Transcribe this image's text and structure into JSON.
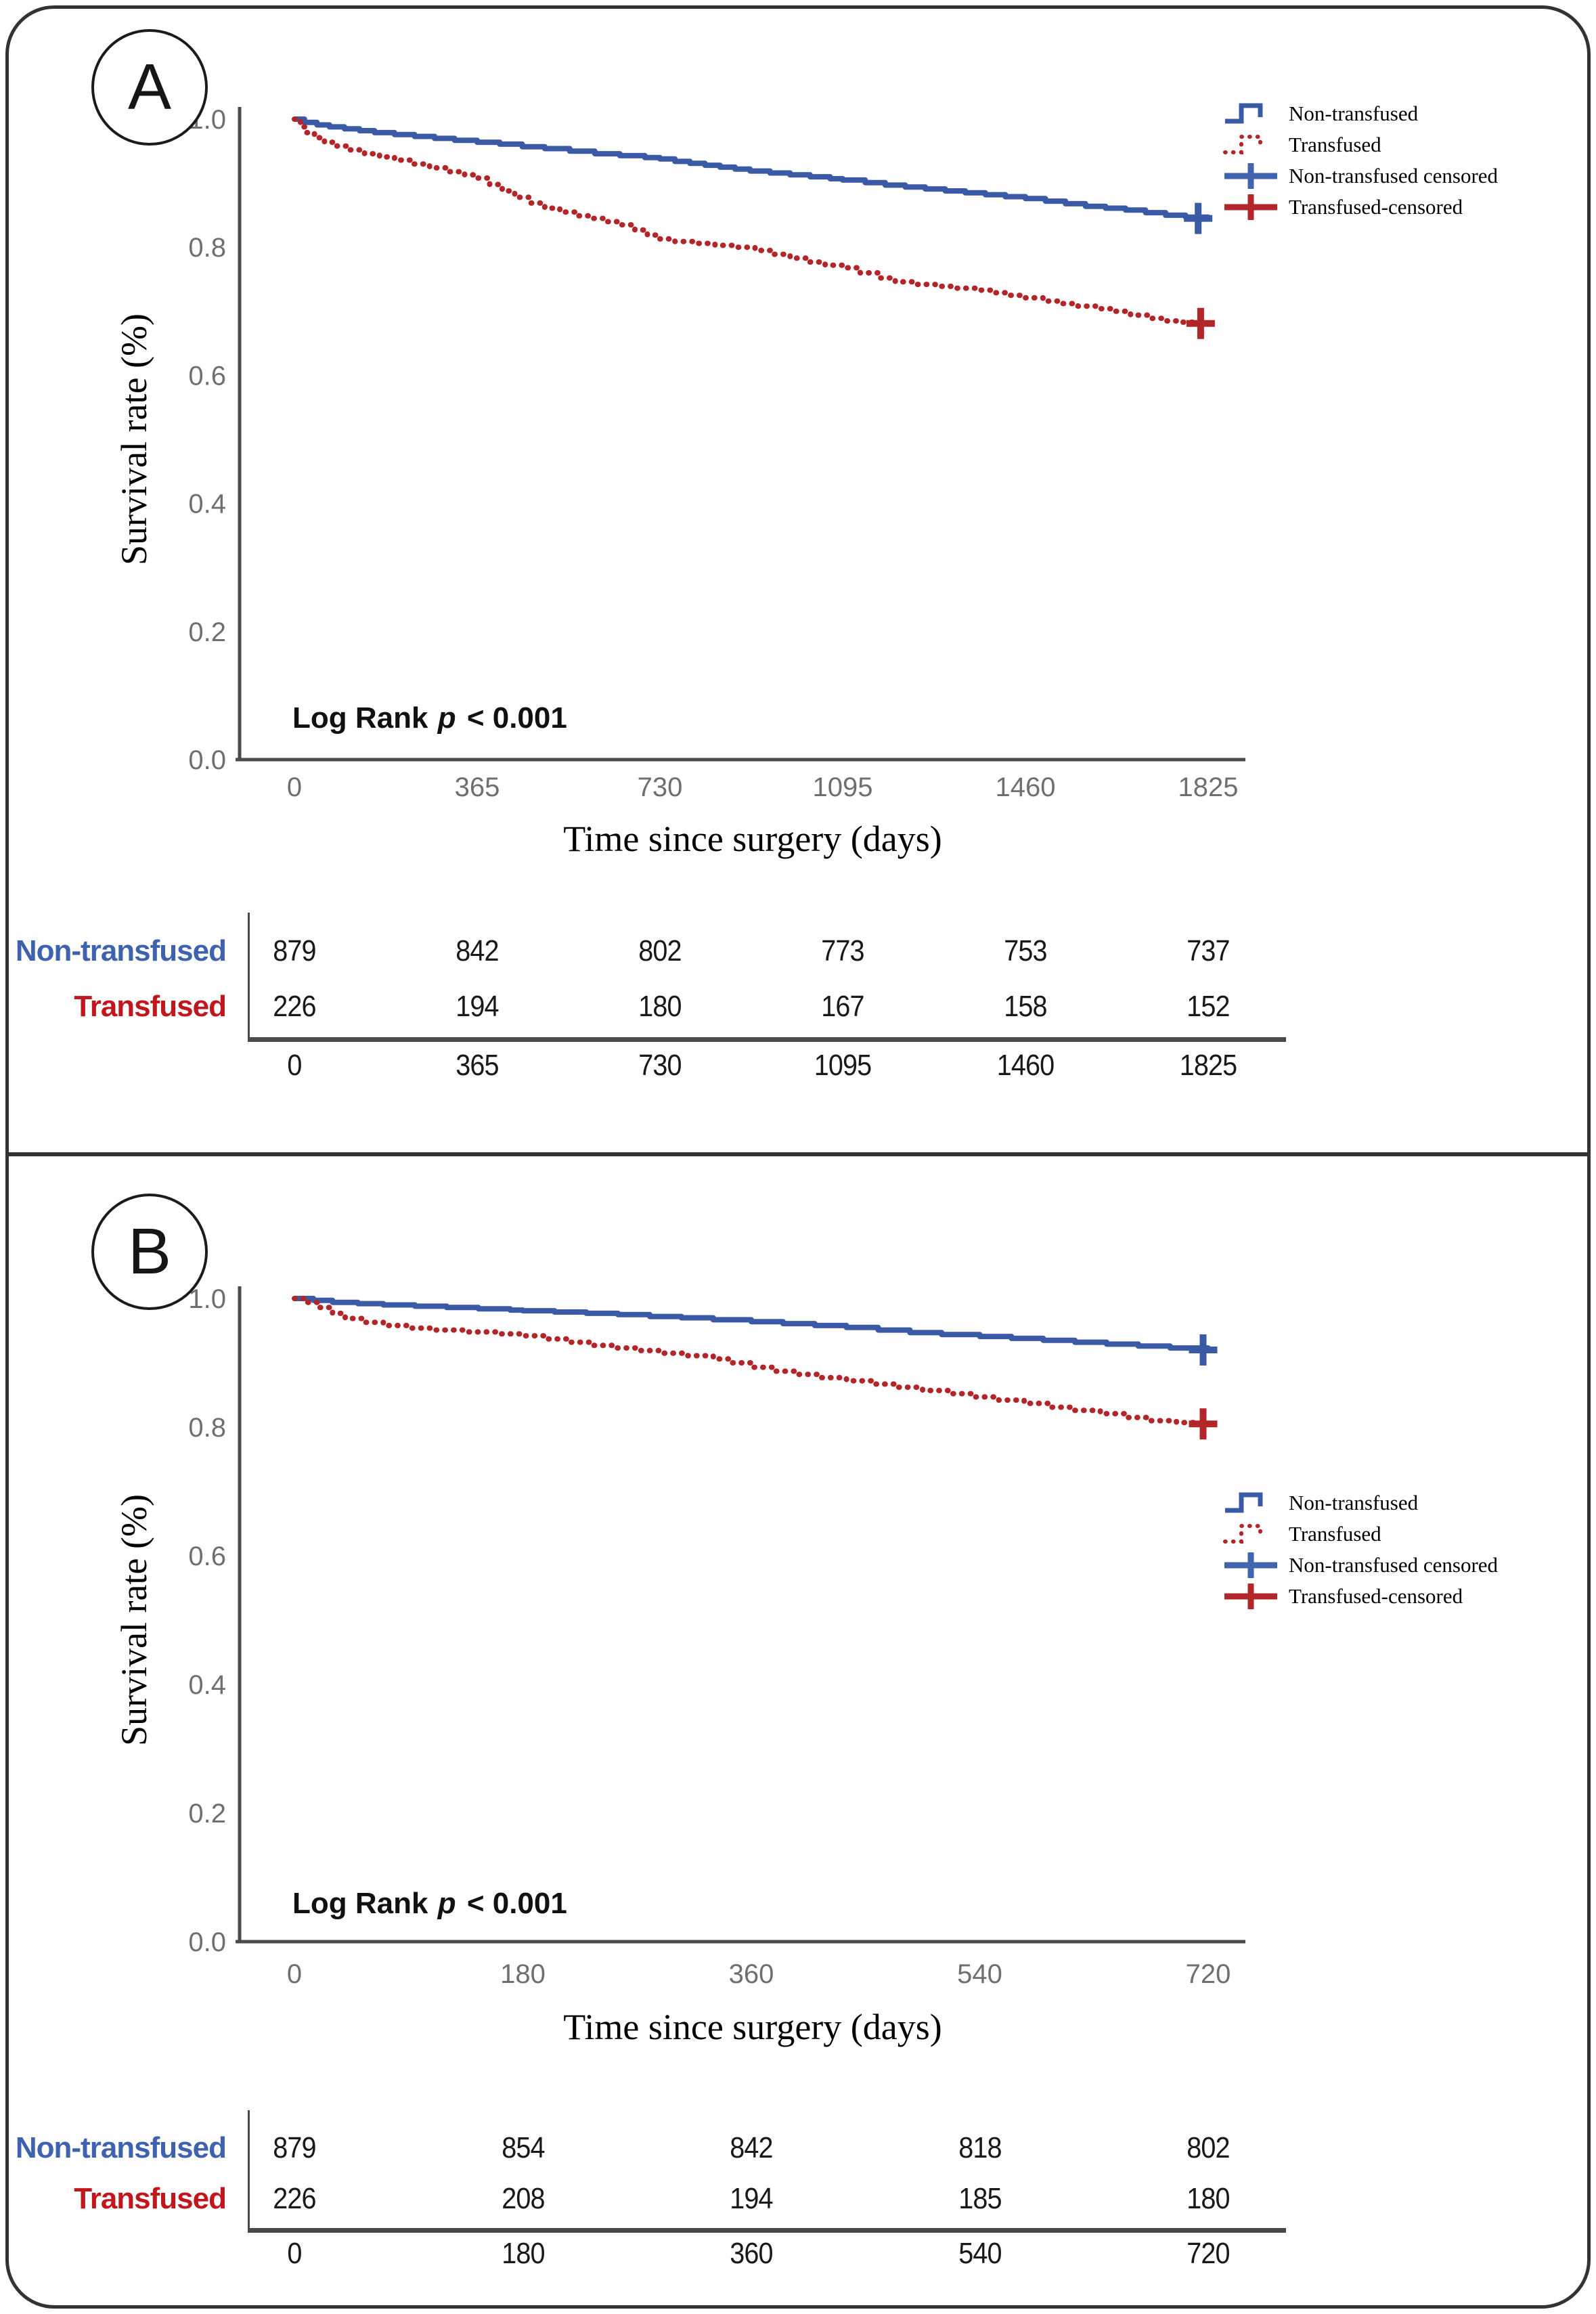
{
  "figure": {
    "border_color": "#333333",
    "background": "#ffffff",
    "accent_blue": "#3a5aa6",
    "accent_red": "#b2262a"
  },
  "legend": {
    "items": [
      {
        "key": "non-transfused",
        "label": "Non-transfused",
        "color": "#3a5aa6",
        "type": "step"
      },
      {
        "key": "transfused",
        "label": "Transfused",
        "color": "#b2262a",
        "type": "dotted-step"
      },
      {
        "key": "non-transfused-censored",
        "label": "Non-transfused censored",
        "color": "#4064ae",
        "type": "plus"
      },
      {
        "key": "transfused-censored",
        "label": "Transfused-censored",
        "color": "#b2262a",
        "type": "plus"
      }
    ]
  },
  "panels": [
    {
      "label": "A",
      "y_axis": {
        "title": "Survival rate (%)",
        "ticks": [
          "1.0",
          "0.8",
          "0.6",
          "0.4",
          "0.2",
          "0.0"
        ]
      },
      "x_axis": {
        "title": "Time since surgery (days)",
        "ticks": [
          "0",
          "365",
          "730",
          "1095",
          "1460",
          "1825"
        ]
      },
      "logrank": {
        "prefix": "Log Rank",
        "p": "p",
        "suffix": "< 0.001"
      }
    },
    {
      "label": "B",
      "y_axis": {
        "title": "Survival rate (%)",
        "ticks": [
          "1.0",
          "0.8",
          "0.6",
          "0.4",
          "0.2",
          "0.0"
        ]
      },
      "x_axis": {
        "title": "Time since surgery (days)",
        "ticks": [
          "0",
          "180",
          "360",
          "540",
          "720"
        ]
      },
      "logrank": {
        "prefix": "Log Rank",
        "p": "p",
        "suffix": "< 0.001"
      }
    }
  ],
  "chart_data": [
    {
      "type": "line",
      "subtype": "kaplan-meier-step",
      "panel": "A",
      "xlabel": "Time since surgery (days)",
      "ylabel": "Survival rate (%)",
      "xlim": [
        0,
        1825
      ],
      "ylim": [
        0.0,
        1.0
      ],
      "x_ticks": [
        0,
        365,
        730,
        1095,
        1460,
        1825
      ],
      "y_ticks": [
        1.0,
        0.8,
        0.6,
        0.4,
        0.2,
        0.0
      ],
      "grid": false,
      "legend_position": "top-right",
      "annotation": "Log Rank p < 0.001",
      "series": [
        {
          "name": "Non-transfused",
          "color": "#3a5aa6",
          "style": "solid",
          "points": [
            [
              0,
              1.0
            ],
            [
              20,
              0.995
            ],
            [
              45,
              0.991
            ],
            [
              70,
              0.988
            ],
            [
              100,
              0.985
            ],
            [
              130,
              0.982
            ],
            [
              160,
              0.979
            ],
            [
              200,
              0.976
            ],
            [
              240,
              0.973
            ],
            [
              280,
              0.97
            ],
            [
              320,
              0.967
            ],
            [
              365,
              0.964
            ],
            [
              410,
              0.961
            ],
            [
              455,
              0.957
            ],
            [
              500,
              0.954
            ],
            [
              550,
              0.95
            ],
            [
              600,
              0.946
            ],
            [
              650,
              0.943
            ],
            [
              700,
              0.94
            ],
            [
              730,
              0.938
            ],
            [
              760,
              0.934
            ],
            [
              790,
              0.931
            ],
            [
              820,
              0.928
            ],
            [
              850,
              0.925
            ],
            [
              880,
              0.922
            ],
            [
              910,
              0.919
            ],
            [
              950,
              0.916
            ],
            [
              990,
              0.913
            ],
            [
              1030,
              0.91
            ],
            [
              1070,
              0.907
            ],
            [
              1095,
              0.905
            ],
            [
              1140,
              0.901
            ],
            [
              1180,
              0.897
            ],
            [
              1220,
              0.894
            ],
            [
              1260,
              0.891
            ],
            [
              1300,
              0.888
            ],
            [
              1340,
              0.885
            ],
            [
              1380,
              0.882
            ],
            [
              1420,
              0.879
            ],
            [
              1460,
              0.876
            ],
            [
              1500,
              0.872
            ],
            [
              1540,
              0.868
            ],
            [
              1580,
              0.864
            ],
            [
              1620,
              0.861
            ],
            [
              1660,
              0.858
            ],
            [
              1700,
              0.854
            ],
            [
              1740,
              0.85
            ],
            [
              1780,
              0.847
            ],
            [
              1825,
              0.845
            ]
          ]
        },
        {
          "name": "Transfused",
          "color": "#b2262a",
          "style": "dotted",
          "points": [
            [
              0,
              1.0
            ],
            [
              12,
              0.988
            ],
            [
              25,
              0.979
            ],
            [
              40,
              0.971
            ],
            [
              60,
              0.964
            ],
            [
              85,
              0.958
            ],
            [
              110,
              0.952
            ],
            [
              140,
              0.946
            ],
            [
              170,
              0.941
            ],
            [
              200,
              0.936
            ],
            [
              235,
              0.93
            ],
            [
              270,
              0.924
            ],
            [
              310,
              0.918
            ],
            [
              340,
              0.913
            ],
            [
              365,
              0.908
            ],
            [
              390,
              0.898
            ],
            [
              415,
              0.888
            ],
            [
              440,
              0.878
            ],
            [
              470,
              0.869
            ],
            [
              500,
              0.861
            ],
            [
              530,
              0.855
            ],
            [
              560,
              0.849
            ],
            [
              590,
              0.845
            ],
            [
              620,
              0.84
            ],
            [
              650,
              0.835
            ],
            [
              680,
              0.827
            ],
            [
              705,
              0.819
            ],
            [
              730,
              0.813
            ],
            [
              760,
              0.809
            ],
            [
              800,
              0.806
            ],
            [
              840,
              0.803
            ],
            [
              880,
              0.8
            ],
            [
              920,
              0.795
            ],
            [
              955,
              0.789
            ],
            [
              990,
              0.783
            ],
            [
              1025,
              0.777
            ],
            [
              1060,
              0.772
            ],
            [
              1095,
              0.768
            ],
            [
              1130,
              0.76
            ],
            [
              1165,
              0.752
            ],
            [
              1200,
              0.746
            ],
            [
              1240,
              0.742
            ],
            [
              1280,
              0.739
            ],
            [
              1320,
              0.736
            ],
            [
              1360,
              0.733
            ],
            [
              1400,
              0.729
            ],
            [
              1430,
              0.725
            ],
            [
              1460,
              0.721
            ],
            [
              1495,
              0.716
            ],
            [
              1530,
              0.712
            ],
            [
              1565,
              0.708
            ],
            [
              1600,
              0.704
            ],
            [
              1635,
              0.7
            ],
            [
              1670,
              0.694
            ],
            [
              1705,
              0.689
            ],
            [
              1740,
              0.685
            ],
            [
              1775,
              0.683
            ],
            [
              1825,
              0.681
            ]
          ]
        }
      ],
      "censored": [
        {
          "series": "Non-transfused",
          "x": 1805,
          "y": 0.845,
          "color": "#3a5aa6"
        },
        {
          "series": "Transfused",
          "x": 1810,
          "y": 0.681,
          "color": "#b2262a"
        }
      ],
      "risk_table": {
        "rows": [
          {
            "label": "Non-transfused",
            "color": "#3f62ae",
            "values": [
              879,
              842,
              802,
              773,
              753,
              737
            ]
          },
          {
            "label": "Transfused",
            "color": "#c0161c",
            "values": [
              226,
              194,
              180,
              167,
              158,
              152
            ]
          }
        ],
        "time_ticks": [
          0,
          365,
          730,
          1095,
          1460,
          1825
        ]
      }
    },
    {
      "type": "line",
      "subtype": "kaplan-meier-step",
      "panel": "B",
      "xlabel": "Time since surgery (days)",
      "ylabel": "Survival rate (%)",
      "xlim": [
        0,
        720
      ],
      "ylim": [
        0.0,
        1.0
      ],
      "x_ticks": [
        0,
        180,
        360,
        540,
        720
      ],
      "y_ticks": [
        1.0,
        0.8,
        0.6,
        0.4,
        0.2,
        0.0
      ],
      "grid": false,
      "legend_position": "middle-right",
      "annotation": "Log Rank p < 0.001",
      "series": [
        {
          "name": "Non-transfused",
          "color": "#3a5aa6",
          "style": "solid",
          "points": [
            [
              0,
              1.0
            ],
            [
              15,
              0.997
            ],
            [
              30,
              0.994
            ],
            [
              50,
              0.992
            ],
            [
              70,
              0.99
            ],
            [
              95,
              0.988
            ],
            [
              120,
              0.986
            ],
            [
              145,
              0.984
            ],
            [
              170,
              0.982
            ],
            [
              180,
              0.981
            ],
            [
              205,
              0.979
            ],
            [
              230,
              0.977
            ],
            [
              255,
              0.975
            ],
            [
              280,
              0.972
            ],
            [
              305,
              0.97
            ],
            [
              330,
              0.967
            ],
            [
              360,
              0.964
            ],
            [
              385,
              0.961
            ],
            [
              410,
              0.958
            ],
            [
              435,
              0.955
            ],
            [
              460,
              0.951
            ],
            [
              485,
              0.947
            ],
            [
              510,
              0.944
            ],
            [
              540,
              0.941
            ],
            [
              565,
              0.938
            ],
            [
              590,
              0.935
            ],
            [
              615,
              0.932
            ],
            [
              640,
              0.929
            ],
            [
              665,
              0.926
            ],
            [
              690,
              0.923
            ],
            [
              720,
              0.92
            ]
          ]
        },
        {
          "name": "Transfused",
          "color": "#b2262a",
          "style": "dotted",
          "points": [
            [
              0,
              1.0
            ],
            [
              10,
              0.994
            ],
            [
              20,
              0.986
            ],
            [
              30,
              0.977
            ],
            [
              40,
              0.969
            ],
            [
              55,
              0.963
            ],
            [
              70,
              0.958
            ],
            [
              90,
              0.954
            ],
            [
              110,
              0.951
            ],
            [
              135,
              0.948
            ],
            [
              160,
              0.945
            ],
            [
              180,
              0.942
            ],
            [
              198,
              0.937
            ],
            [
              216,
              0.932
            ],
            [
              234,
              0.927
            ],
            [
              252,
              0.923
            ],
            [
              270,
              0.919
            ],
            [
              290,
              0.915
            ],
            [
              310,
              0.911
            ],
            [
              330,
              0.906
            ],
            [
              345,
              0.9
            ],
            [
              360,
              0.893
            ],
            [
              378,
              0.887
            ],
            [
              396,
              0.882
            ],
            [
              415,
              0.877
            ],
            [
              435,
              0.872
            ],
            [
              455,
              0.867
            ],
            [
              475,
              0.862
            ],
            [
              495,
              0.857
            ],
            [
              515,
              0.852
            ],
            [
              535,
              0.847
            ],
            [
              555,
              0.842
            ],
            [
              575,
              0.837
            ],
            [
              595,
              0.831
            ],
            [
              615,
              0.826
            ],
            [
              635,
              0.821
            ],
            [
              655,
              0.815
            ],
            [
              675,
              0.81
            ],
            [
              695,
              0.807
            ],
            [
              720,
              0.805
            ]
          ]
        }
      ],
      "censored": [
        {
          "series": "Non-transfused",
          "x": 716,
          "y": 0.92,
          "color": "#3a5aa6"
        },
        {
          "series": "Transfused",
          "x": 716,
          "y": 0.805,
          "color": "#b2262a"
        }
      ],
      "risk_table": {
        "rows": [
          {
            "label": "Non-transfused",
            "color": "#3f62ae",
            "values": [
              879,
              854,
              842,
              818,
              802
            ]
          },
          {
            "label": "Transfused",
            "color": "#c0161c",
            "values": [
              226,
              208,
              194,
              185,
              180
            ]
          }
        ],
        "time_ticks": [
          0,
          180,
          360,
          540,
          720
        ]
      }
    }
  ]
}
